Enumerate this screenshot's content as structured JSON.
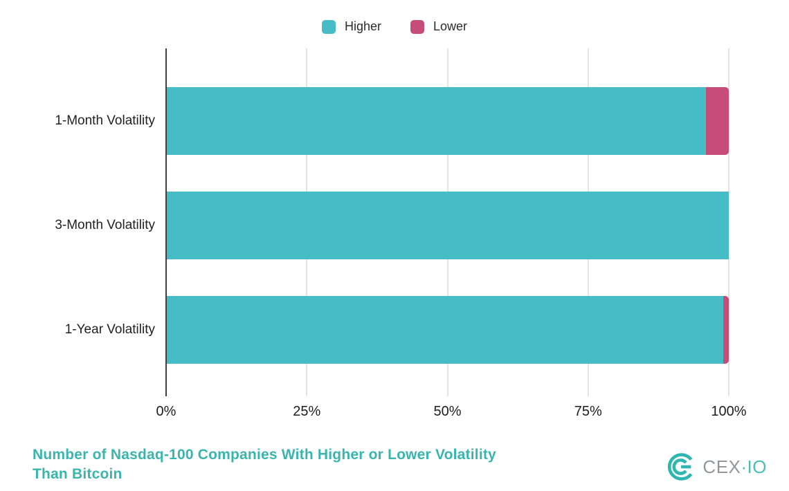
{
  "chart_data": {
    "type": "bar",
    "orientation": "horizontal",
    "stacked": true,
    "unit": "%",
    "categories": [
      "1-Month Volatility",
      "3-Month Volatility",
      "1-Year Volatility"
    ],
    "series": [
      {
        "name": "Higher",
        "color": "#45bcc6",
        "values": [
          96,
          100,
          99
        ]
      },
      {
        "name": "Lower",
        "color": "#c64d78",
        "values": [
          4,
          0,
          1
        ]
      }
    ],
    "x_ticks": [
      {
        "label": "0%",
        "value": 0
      },
      {
        "label": "25%",
        "value": 25
      },
      {
        "label": "50%",
        "value": 50
      },
      {
        "label": "75%",
        "value": 75
      },
      {
        "label": "100%",
        "value": 100
      }
    ],
    "xlim": [
      0,
      100
    ],
    "grid": true,
    "legend_position": "top",
    "title": "Number of Nasdaq-100 Companies With Higher or Lower Volatility Than Bitcoin",
    "title_lines": [
      "Number of Nasdaq-100 Companies With Higher or Lower Volatility",
      "Than Bitcoin"
    ]
  },
  "colors": {
    "higher": "#45bcc6",
    "lower": "#c64d78",
    "title": "#3ab5ae",
    "axis_line": "#3f3f3f",
    "gridline": "#e4e4e4",
    "text": "#1f1f1f",
    "logo_mark": "#2eb6b0",
    "logo_text": "#8f979d",
    "logo_accent": "#4bbdb7"
  },
  "brand": {
    "name": "CEX·IO",
    "text_main": "CEX",
    "text_accent": "·IO"
  }
}
